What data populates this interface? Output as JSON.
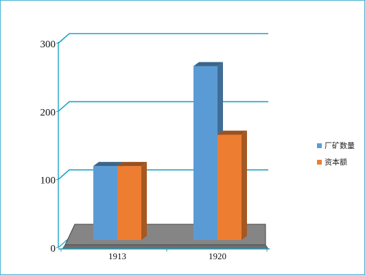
{
  "chart_data": {
    "type": "bar",
    "title": "",
    "xlabel": "",
    "ylabel": "",
    "categories": [
      "1913",
      "1920"
    ],
    "series": [
      {
        "name": "厂矿数量",
        "values": [
          109,
          256
        ],
        "color": "#5b9bd5"
      },
      {
        "name": "资本额",
        "values": [
          109,
          155
        ],
        "color": "#ed7d31"
      }
    ],
    "ylim": [
      0,
      300
    ],
    "yticks": [
      "0",
      "100",
      "200",
      "300"
    ],
    "grid": true,
    "legend_position": "right",
    "style": "3d-clustered-column"
  }
}
